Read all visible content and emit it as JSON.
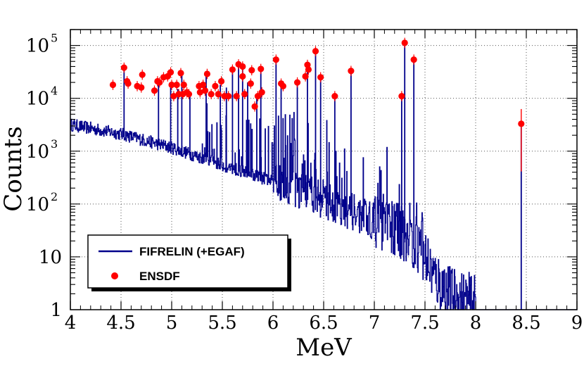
{
  "chart_data": {
    "type": "scatter",
    "title": "",
    "xlabel": "MeV",
    "ylabel": "Counts",
    "xlim": [
      4,
      9
    ],
    "ylim": [
      1,
      200000
    ],
    "yscale": "log",
    "grid": true,
    "legend_position": "bottom-left",
    "x_ticks": [
      4,
      4.5,
      5,
      5.5,
      6,
      6.5,
      7,
      7.5,
      8,
      8.5,
      9
    ],
    "x_tick_labels": [
      "4",
      "4.5",
      "5",
      "5.5",
      "6",
      "6.5",
      "7",
      "7.5",
      "8",
      "8.5",
      "9"
    ],
    "y_ticks": [
      {
        "value": 1,
        "base": "1",
        "exp": ""
      },
      {
        "value": 10,
        "base": "10",
        "exp": ""
      },
      {
        "value": 100,
        "base": "10",
        "exp": "2"
      },
      {
        "value": 1000,
        "base": "10",
        "exp": "3"
      },
      {
        "value": 10000,
        "base": "10",
        "exp": "4"
      },
      {
        "value": 100000,
        "base": "10",
        "exp": "5"
      }
    ],
    "series": [
      {
        "name": "FIFRELIN (+EGAF)",
        "style": "histogram",
        "color": "#00008b",
        "continuum": [
          [
            4.0,
            3000
          ],
          [
            4.5,
            2000
          ],
          [
            5.0,
            1100
          ],
          [
            5.5,
            520
          ],
          [
            6.0,
            250
          ],
          [
            6.5,
            100
          ],
          [
            7.0,
            40
          ],
          [
            7.3,
            22
          ],
          [
            7.5,
            8
          ],
          [
            7.6,
            3
          ],
          [
            7.75,
            1.5
          ],
          [
            8.0,
            1
          ]
        ],
        "peaks": [
          [
            4.53,
            38000
          ],
          [
            4.87,
            22000
          ],
          [
            4.99,
            17000
          ],
          [
            5.06,
            15000
          ],
          [
            5.1,
            28000
          ],
          [
            5.18,
            12000
          ],
          [
            5.34,
            27000
          ],
          [
            5.48,
            18000
          ],
          [
            5.54,
            16000
          ],
          [
            5.6,
            35000
          ],
          [
            5.66,
            44000
          ],
          [
            5.7,
            40000
          ],
          [
            5.75,
            20000
          ],
          [
            5.84,
            12000
          ],
          [
            5.88,
            36000
          ],
          [
            6.03,
            54000
          ],
          [
            6.08,
            19000
          ],
          [
            6.24,
            20000
          ],
          [
            6.34,
            40000
          ],
          [
            6.42,
            78000
          ],
          [
            6.47,
            25000
          ],
          [
            6.61,
            11000
          ],
          [
            6.77,
            33000
          ],
          [
            7.27,
            11000
          ],
          [
            7.3,
            112000
          ],
          [
            7.39,
            54000
          ],
          [
            8.45,
            3300
          ]
        ]
      },
      {
        "name": "ENSDF",
        "style": "markers",
        "color": "#ff0000",
        "points": [
          [
            4.42,
            18000
          ],
          [
            4.53,
            38000
          ],
          [
            4.56,
            21000
          ],
          [
            4.57,
            19000
          ],
          [
            4.66,
            17000
          ],
          [
            4.7,
            16000
          ],
          [
            4.71,
            28000
          ],
          [
            4.83,
            14000
          ],
          [
            4.86,
            21000
          ],
          [
            4.88,
            20000
          ],
          [
            4.92,
            25000
          ],
          [
            4.96,
            26000
          ],
          [
            4.99,
            31000
          ],
          [
            5.0,
            18000
          ],
          [
            5.02,
            11000
          ],
          [
            5.05,
            18000
          ],
          [
            5.07,
            12000
          ],
          [
            5.09,
            30000
          ],
          [
            5.11,
            12000
          ],
          [
            5.12,
            18000
          ],
          [
            5.15,
            13000
          ],
          [
            5.17,
            12000
          ],
          [
            5.27,
            17000
          ],
          [
            5.28,
            13000
          ],
          [
            5.31,
            18000
          ],
          [
            5.33,
            14000
          ],
          [
            5.35,
            29000
          ],
          [
            5.39,
            12000
          ],
          [
            5.43,
            17000
          ],
          [
            5.46,
            12000
          ],
          [
            5.49,
            21000
          ],
          [
            5.52,
            11000
          ],
          [
            5.56,
            11000
          ],
          [
            5.6,
            35000
          ],
          [
            5.64,
            11000
          ],
          [
            5.66,
            44000
          ],
          [
            5.7,
            40000
          ],
          [
            5.7,
            26000
          ],
          [
            5.72,
            12000
          ],
          [
            5.78,
            19000
          ],
          [
            5.79,
            34000
          ],
          [
            5.82,
            7000
          ],
          [
            5.85,
            11000
          ],
          [
            5.88,
            36000
          ],
          [
            5.89,
            13000
          ],
          [
            6.03,
            54000
          ],
          [
            6.08,
            19000
          ],
          [
            6.1,
            17000
          ],
          [
            6.24,
            20000
          ],
          [
            6.32,
            26000
          ],
          [
            6.34,
            43000
          ],
          [
            6.35,
            35000
          ],
          [
            6.42,
            78000
          ],
          [
            6.47,
            25000
          ],
          [
            6.61,
            11000
          ],
          [
            6.77,
            33000
          ],
          [
            7.27,
            11000
          ],
          [
            7.3,
            112000
          ],
          [
            7.39,
            54000
          ],
          [
            8.45,
            3300
          ]
        ]
      }
    ]
  },
  "legend": {
    "fifrelin_label": "FIFRELIN (+EGAF)",
    "ensdf_label": "ENSDF"
  },
  "colors": {
    "fifrelin": "#00008b",
    "ensdf": "#ff0000"
  }
}
